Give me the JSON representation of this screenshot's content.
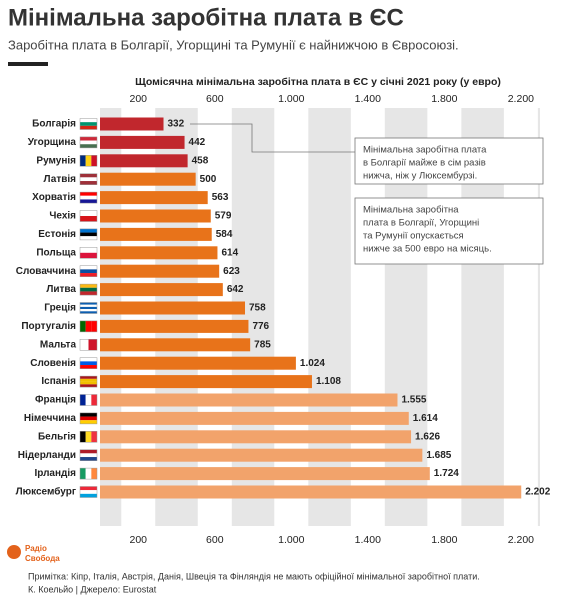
{
  "chart_data": {
    "type": "hbar",
    "title": "Мінімальна заробітна плата в ЄС",
    "subtitle": "Заробітна плата в Болгарії, Угорщині та Румунії є найнижчою в Євросоюзі.",
    "x_axis_label": "Щомісячна мінімальна заробітна плата в ЄС у січні 2021 року (у евро)",
    "categories": [
      "Болгарія",
      "Угорщина",
      "Румунія",
      "Латвія",
      "Хорватія",
      "Чехія",
      "Естонія",
      "Польща",
      "Словаччина",
      "Литва",
      "Греція",
      "Португалія",
      "Мальта",
      "Словенія",
      "Іспанія",
      "Франція",
      "Німеччина",
      "Бельгія",
      "Нідерланди",
      "Ірландія",
      "Люксембург"
    ],
    "values": [
      332,
      442,
      458,
      500,
      563,
      579,
      584,
      614,
      623,
      642,
      758,
      776,
      785,
      1024,
      1108,
      1555,
      1614,
      1626,
      1685,
      1724,
      2202
    ],
    "value_labels": [
      "332",
      "442",
      "458",
      "500",
      "563",
      "579",
      "584",
      "614",
      "623",
      "642",
      "758",
      "776",
      "785",
      "1.024",
      "1.108",
      "1.555",
      "1.614",
      "1.626",
      "1.685",
      "1.724",
      "2.202"
    ],
    "colors": [
      "#c1272d",
      "#c1272d",
      "#c1272d",
      "#e8731a",
      "#e8731a",
      "#e8731a",
      "#e8731a",
      "#e8731a",
      "#e8731a",
      "#e8731a",
      "#e8731a",
      "#e8731a",
      "#e8731a",
      "#e8731a",
      "#e8731a",
      "#f2a36b",
      "#f2a36b",
      "#f2a36b",
      "#f2a36b",
      "#f2a36b",
      "#f2a36b"
    ],
    "xlim": [
      0,
      2300
    ],
    "xticks": [
      200,
      600,
      {
        "value": 1000,
        "label": "1.000"
      },
      {
        "value": 1400,
        "label": "1.400"
      },
      {
        "value": 1800,
        "label": "1.800"
      },
      {
        "value": 2200,
        "label": "2.200"
      }
    ],
    "grid": true,
    "annotations": [
      [
        "Мінімальна заробітна плата",
        "в Болгарії майже в сім разів",
        "нижча, ніж у Люксембурзі."
      ],
      [
        "Мінімальна заробітна",
        "плата в Болгарії, Угорщині",
        "та Румунії опускається",
        "нижче за 500 евро на місяць."
      ]
    ],
    "note": "Примітка: Кіпр, Італія, Австрія, Данія, Швеція та Фінляндія не мають офіційної мінімальної заробітної плати.",
    "source": "К. Коельйо | Джерело: Eurostat"
  },
  "logo": [
    "Радіо",
    "Свобода"
  ]
}
